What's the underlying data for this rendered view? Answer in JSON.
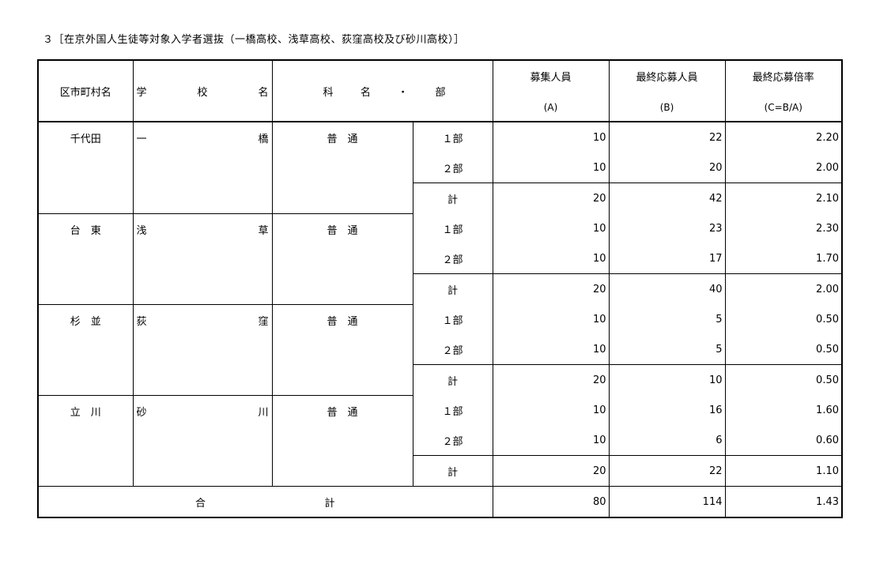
{
  "title": "３［在京外国人生徒等対象入学者選抜（一橋高校、浅草高校、荻窪高校及び砂川高校）］",
  "headers": {
    "ward": "区市町村名",
    "school": "学校名",
    "course": [
      "科",
      "名",
      "・",
      "部"
    ],
    "capacity": {
      "label": "募集人員",
      "sub": "(A)"
    },
    "applicants": {
      "label": "最終応募人員",
      "sub": "(B)"
    },
    "ratio": {
      "label": "最終応募倍率",
      "sub": "(C=B/A)"
    }
  },
  "groups": [
    {
      "ward": "千代田",
      "school": "一橋",
      "course": "普　通",
      "rows": [
        {
          "part": "１部",
          "a": "10",
          "b": "22",
          "c": "2.20"
        },
        {
          "part": "２部",
          "a": "10",
          "b": "20",
          "c": "2.00"
        },
        {
          "part": "計",
          "a": "20",
          "b": "42",
          "c": "2.10"
        }
      ]
    },
    {
      "ward": "台　東",
      "school": "浅草",
      "course": "普　通",
      "rows": [
        {
          "part": "１部",
          "a": "10",
          "b": "23",
          "c": "2.30"
        },
        {
          "part": "２部",
          "a": "10",
          "b": "17",
          "c": "1.70"
        },
        {
          "part": "計",
          "a": "20",
          "b": "40",
          "c": "2.00"
        }
      ]
    },
    {
      "ward": "杉　並",
      "school": "荻窪",
      "course": "普　通",
      "rows": [
        {
          "part": "１部",
          "a": "10",
          "b": "5",
          "c": "0.50"
        },
        {
          "part": "２部",
          "a": "10",
          "b": "5",
          "c": "0.50"
        },
        {
          "part": "計",
          "a": "20",
          "b": "10",
          "c": "0.50"
        }
      ]
    },
    {
      "ward": "立　川",
      "school": "砂川",
      "course": "普　通",
      "rows": [
        {
          "part": "１部",
          "a": "10",
          "b": "16",
          "c": "1.60"
        },
        {
          "part": "２部",
          "a": "10",
          "b": "6",
          "c": "0.60"
        },
        {
          "part": "計",
          "a": "20",
          "b": "22",
          "c": "1.10"
        }
      ]
    }
  ],
  "total": {
    "label": [
      "合",
      "計"
    ],
    "a": "80",
    "b": "114",
    "c": "1.43"
  }
}
